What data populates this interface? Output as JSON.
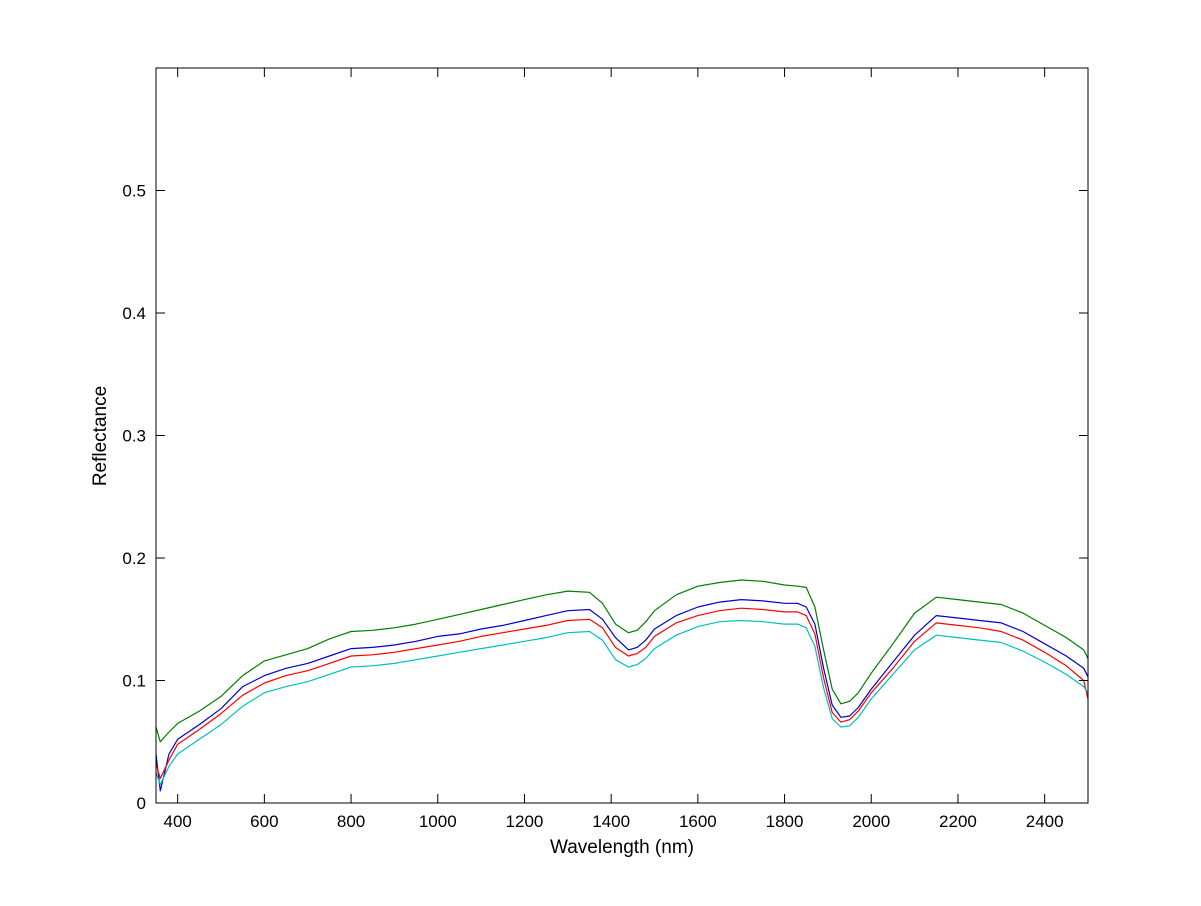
{
  "chart_data": {
    "type": "line",
    "xlabel": "Wavelength (nm)",
    "ylabel": "Reflectance",
    "xlim": [
      350,
      2500
    ],
    "ylim": [
      0,
      0.6
    ],
    "x_ticks": [
      400,
      600,
      800,
      1000,
      1200,
      1400,
      1600,
      1800,
      2000,
      2200,
      2400
    ],
    "y_ticks": [
      0,
      0.1,
      0.2,
      0.3,
      0.4,
      0.5
    ],
    "x_tick_labels": [
      "400",
      "600",
      "800",
      "1000",
      "1200",
      "1400",
      "1600",
      "1800",
      "2000",
      "2200",
      "2400"
    ],
    "y_tick_labels": [
      "0",
      "0.1",
      "0.2",
      "0.3",
      "0.4",
      "0.5"
    ],
    "grid": false,
    "legend": "none",
    "x": [
      350,
      360,
      380,
      400,
      450,
      500,
      550,
      600,
      650,
      700,
      750,
      800,
      850,
      900,
      950,
      1000,
      1050,
      1100,
      1150,
      1200,
      1250,
      1300,
      1350,
      1380,
      1410,
      1440,
      1460,
      1480,
      1500,
      1550,
      1600,
      1650,
      1700,
      1750,
      1800,
      1830,
      1850,
      1870,
      1890,
      1910,
      1930,
      1950,
      1970,
      2000,
      2050,
      2100,
      2150,
      2200,
      2250,
      2300,
      2350,
      2400,
      2450,
      2490,
      2500
    ],
    "series": [
      {
        "color": "#007f00",
        "values": [
          0.062,
          0.05,
          0.058,
          0.065,
          0.075,
          0.087,
          0.104,
          0.116,
          0.121,
          0.126,
          0.134,
          0.14,
          0.141,
          0.143,
          0.146,
          0.15,
          0.154,
          0.158,
          0.162,
          0.166,
          0.17,
          0.173,
          0.172,
          0.163,
          0.146,
          0.139,
          0.141,
          0.148,
          0.157,
          0.17,
          0.177,
          0.18,
          0.182,
          0.181,
          0.178,
          0.177,
          0.176,
          0.16,
          0.125,
          0.093,
          0.081,
          0.083,
          0.09,
          0.106,
          0.13,
          0.155,
          0.168,
          0.166,
          0.164,
          0.162,
          0.155,
          0.145,
          0.135,
          0.125,
          0.118
        ]
      },
      {
        "color": "#0000cc",
        "values": [
          0.04,
          0.01,
          0.04,
          0.052,
          0.064,
          0.077,
          0.095,
          0.104,
          0.11,
          0.114,
          0.12,
          0.126,
          0.127,
          0.129,
          0.132,
          0.136,
          0.138,
          0.142,
          0.145,
          0.149,
          0.153,
          0.157,
          0.158,
          0.15,
          0.135,
          0.125,
          0.127,
          0.133,
          0.142,
          0.153,
          0.16,
          0.164,
          0.166,
          0.165,
          0.163,
          0.163,
          0.16,
          0.146,
          0.11,
          0.08,
          0.07,
          0.071,
          0.078,
          0.093,
          0.115,
          0.137,
          0.153,
          0.151,
          0.149,
          0.147,
          0.14,
          0.13,
          0.12,
          0.11,
          0.103
        ]
      },
      {
        "color": "#ff0000",
        "values": [
          0.032,
          0.02,
          0.035,
          0.048,
          0.06,
          0.073,
          0.088,
          0.098,
          0.104,
          0.108,
          0.114,
          0.12,
          0.121,
          0.123,
          0.126,
          0.129,
          0.132,
          0.136,
          0.139,
          0.142,
          0.145,
          0.149,
          0.15,
          0.143,
          0.127,
          0.12,
          0.122,
          0.127,
          0.136,
          0.147,
          0.153,
          0.157,
          0.159,
          0.158,
          0.156,
          0.156,
          0.153,
          0.138,
          0.102,
          0.074,
          0.066,
          0.068,
          0.075,
          0.09,
          0.11,
          0.132,
          0.147,
          0.145,
          0.143,
          0.14,
          0.133,
          0.123,
          0.112,
          0.1,
          0.085
        ]
      },
      {
        "color": "#00bfbf",
        "values": [
          0.025,
          0.015,
          0.03,
          0.04,
          0.052,
          0.064,
          0.079,
          0.09,
          0.095,
          0.099,
          0.105,
          0.111,
          0.112,
          0.114,
          0.117,
          0.12,
          0.123,
          0.126,
          0.129,
          0.132,
          0.135,
          0.139,
          0.14,
          0.133,
          0.117,
          0.111,
          0.113,
          0.118,
          0.126,
          0.137,
          0.144,
          0.148,
          0.149,
          0.148,
          0.146,
          0.146,
          0.143,
          0.128,
          0.094,
          0.069,
          0.062,
          0.063,
          0.07,
          0.085,
          0.105,
          0.125,
          0.137,
          0.135,
          0.133,
          0.131,
          0.124,
          0.115,
          0.105,
          0.095,
          0.09
        ]
      }
    ]
  }
}
